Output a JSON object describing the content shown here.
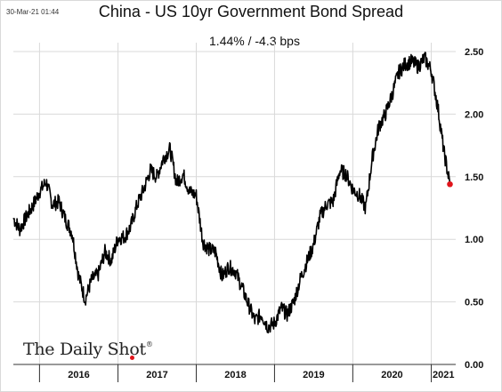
{
  "header": {
    "timestamp": "30-Mar-21 01:44",
    "title": "China - US 10yr Government Bond Spread",
    "subtitle": "1.44%  /  -4.3 bps"
  },
  "watermark": {
    "text": "The Daily Shot",
    "mark": "®"
  },
  "colors": {
    "line": "#000000",
    "grid": "#d9d9d9",
    "marker": "#e0141b"
  },
  "chart_data": {
    "type": "line",
    "title": "China - US 10yr Government Bond Spread",
    "subtitle": "1.44%  /  -4.3 bps",
    "xlabel": "",
    "ylabel": "",
    "x_range": [
      "2015-09-01",
      "2021-04-25"
    ],
    "ylim": [
      0.0,
      2.5
    ],
    "yticks": [
      0.0,
      0.5,
      1.0,
      1.5,
      2.0,
      2.5
    ],
    "ytick_labels": [
      "0.00",
      "0.50",
      "1.00",
      "1.50",
      "2.00",
      "2.50"
    ],
    "y_axis_position": "right",
    "xtick_labels": [
      "2016",
      "2017",
      "2018",
      "2019",
      "2020",
      "2021"
    ],
    "grid": "horizontal and vertical",
    "last_point": {
      "x": "2021-03-29",
      "y": 1.44,
      "marker": "red dot"
    },
    "series": [
      {
        "points": [
          [
            "2015-09-01",
            1.17
          ],
          [
            "2015-10-01",
            1.08
          ],
          [
            "2015-11-01",
            1.18
          ],
          [
            "2015-12-01",
            1.27
          ],
          [
            "2016-01-01",
            1.38
          ],
          [
            "2016-02-01",
            1.46
          ],
          [
            "2016-03-01",
            1.28
          ],
          [
            "2016-04-01",
            1.3
          ],
          [
            "2016-05-01",
            1.16
          ],
          [
            "2016-06-01",
            1.05
          ],
          [
            "2016-07-01",
            0.71
          ],
          [
            "2016-08-01",
            0.52
          ],
          [
            "2016-09-01",
            0.68
          ],
          [
            "2016-10-01",
            0.72
          ],
          [
            "2016-11-01",
            0.9
          ],
          [
            "2016-12-01",
            0.83
          ],
          [
            "2017-01-01",
            1.01
          ],
          [
            "2017-02-01",
            1.02
          ],
          [
            "2017-03-01",
            1.1
          ],
          [
            "2017-04-01",
            1.28
          ],
          [
            "2017-05-01",
            1.4
          ],
          [
            "2017-06-01",
            1.55
          ],
          [
            "2017-07-01",
            1.5
          ],
          [
            "2017-08-01",
            1.65
          ],
          [
            "2017-09-01",
            1.72
          ],
          [
            "2017-10-01",
            1.45
          ],
          [
            "2017-11-01",
            1.52
          ],
          [
            "2017-12-01",
            1.38
          ],
          [
            "2018-01-01",
            1.35
          ],
          [
            "2018-02-01",
            0.98
          ],
          [
            "2018-03-01",
            0.92
          ],
          [
            "2018-04-01",
            0.9
          ],
          [
            "2018-05-01",
            0.7
          ],
          [
            "2018-06-01",
            0.78
          ],
          [
            "2018-07-01",
            0.75
          ],
          [
            "2018-08-01",
            0.62
          ],
          [
            "2018-09-01",
            0.48
          ],
          [
            "2018-10-01",
            0.35
          ],
          [
            "2018-11-01",
            0.4
          ],
          [
            "2018-12-01",
            0.3
          ],
          [
            "2019-01-01",
            0.33
          ],
          [
            "2019-02-01",
            0.45
          ],
          [
            "2019-03-01",
            0.4
          ],
          [
            "2019-04-01",
            0.5
          ],
          [
            "2019-05-01",
            0.68
          ],
          [
            "2019-06-01",
            0.82
          ],
          [
            "2019-07-01",
            0.95
          ],
          [
            "2019-08-01",
            1.18
          ],
          [
            "2019-09-01",
            1.28
          ],
          [
            "2019-10-01",
            1.3
          ],
          [
            "2019-11-01",
            1.55
          ],
          [
            "2019-12-01",
            1.52
          ],
          [
            "2020-01-01",
            1.4
          ],
          [
            "2020-02-01",
            1.35
          ],
          [
            "2020-03-01",
            1.25
          ],
          [
            "2020-04-01",
            1.65
          ],
          [
            "2020-05-01",
            1.9
          ],
          [
            "2020-06-01",
            2.0
          ],
          [
            "2020-07-01",
            2.15
          ],
          [
            "2020-08-01",
            2.33
          ],
          [
            "2020-09-01",
            2.4
          ],
          [
            "2020-10-01",
            2.42
          ],
          [
            "2020-11-01",
            2.38
          ],
          [
            "2020-12-01",
            2.45
          ],
          [
            "2021-01-01",
            2.35
          ],
          [
            "2021-02-01",
            2.05
          ],
          [
            "2021-03-01",
            1.7
          ],
          [
            "2021-03-29",
            1.44
          ]
        ]
      }
    ]
  }
}
